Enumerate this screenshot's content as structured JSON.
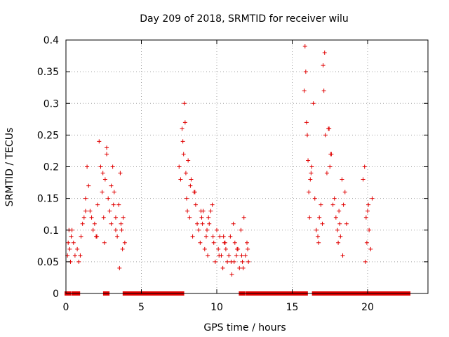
{
  "chart_data": {
    "type": "scatter",
    "title": "Day 209 of 2018, SRMTID for receiver wilu",
    "xlabel": "GPS time / hours",
    "ylabel": "SRMTID / TECUs",
    "xlim": [
      0,
      24
    ],
    "ylim": [
      0,
      0.4
    ],
    "xticks": [
      0,
      5,
      10,
      15,
      20
    ],
    "yticks": [
      0,
      0.05,
      0.1,
      0.15,
      0.2,
      0.25,
      0.3,
      0.35,
      0.4
    ],
    "xtick_labels": [
      "0",
      "5",
      "10",
      "15",
      "20"
    ],
    "ytick_labels": [
      "0",
      "0.05",
      "0.1",
      "0.15",
      "0.2",
      "0.25",
      "0.3",
      "0.35",
      "0.4"
    ],
    "grid": true,
    "marker": "+",
    "colors": {
      "series": "#e00000",
      "grid": "#a0a0a0",
      "axis": "#000000"
    },
    "series": [
      {
        "name": "SRMTID",
        "x": [
          0.1,
          0.15,
          0.2,
          0.25,
          0.3,
          0.35,
          0.4,
          0.5,
          0.6,
          0.75,
          0.85,
          0.95,
          1.0,
          1.1,
          1.2,
          1.3,
          1.4,
          1.5,
          1.6,
          1.7,
          1.8,
          1.9,
          2.0,
          2.1,
          2.2,
          2.3,
          2.4,
          2.5,
          2.55,
          2.6,
          2.7,
          2.8,
          2.9,
          3.0,
          3.1,
          3.2,
          3.3,
          3.4,
          3.5,
          3.6,
          3.7,
          3.8,
          3.9,
          2.7,
          3.0,
          3.3,
          3.55,
          3.75,
          1.3,
          2.05,
          2.45,
          3.15,
          3.65,
          7.5,
          7.6,
          7.7,
          7.75,
          7.8,
          7.85,
          7.9,
          7.95,
          8.0,
          8.05,
          8.1,
          8.2,
          8.3,
          8.4,
          8.5,
          8.6,
          8.7,
          8.8,
          8.9,
          9.0,
          9.1,
          9.2,
          9.3,
          9.4,
          9.5,
          9.6,
          9.7,
          9.8,
          9.9,
          10.0,
          10.1,
          10.2,
          10.3,
          10.4,
          10.5,
          10.6,
          10.7,
          10.8,
          10.9,
          11.0,
          11.1,
          11.2,
          11.3,
          11.4,
          11.5,
          11.6,
          11.7,
          11.8,
          11.9,
          12.0,
          12.1,
          8.25,
          8.55,
          8.95,
          9.35,
          9.75,
          10.15,
          10.55,
          10.95,
          11.35,
          11.75,
          12.05,
          9.05,
          9.45,
          10.45,
          11.15,
          11.65,
          15.8,
          15.85,
          15.9,
          15.95,
          16.0,
          16.05,
          16.1,
          16.15,
          16.2,
          16.3,
          16.4,
          16.5,
          16.6,
          16.7,
          16.8,
          16.9,
          17.0,
          17.05,
          17.1,
          17.2,
          17.3,
          17.4,
          17.5,
          17.6,
          17.7,
          17.8,
          17.9,
          18.0,
          18.1,
          18.2,
          18.3,
          18.4,
          18.5,
          18.6,
          19.7,
          19.8,
          19.9,
          20.0,
          20.1,
          20.2,
          20.3,
          17.15,
          17.45,
          18.05,
          18.35,
          19.85,
          20.05,
          16.25,
          16.75,
          17.55,
          18.15,
          19.95
        ],
        "values": [
          0.06,
          0.08,
          0.1,
          0.07,
          0.05,
          0.09,
          0.1,
          0.08,
          0.06,
          0.07,
          0.05,
          0.06,
          0.09,
          0.11,
          0.12,
          0.15,
          0.2,
          0.17,
          0.13,
          0.12,
          0.1,
          0.11,
          0.09,
          0.14,
          0.24,
          0.2,
          0.16,
          0.12,
          0.08,
          0.18,
          0.22,
          0.15,
          0.13,
          0.11,
          0.2,
          0.16,
          0.12,
          0.09,
          0.14,
          0.19,
          0.1,
          0.12,
          0.08,
          0.23,
          0.17,
          0.1,
          0.04,
          0.07,
          0.13,
          0.09,
          0.19,
          0.14,
          0.11,
          0.2,
          0.18,
          0.26,
          0.24,
          0.22,
          0.3,
          0.27,
          0.19,
          0.15,
          0.13,
          0.21,
          0.12,
          0.18,
          0.09,
          0.16,
          0.14,
          0.11,
          0.1,
          0.08,
          0.12,
          0.13,
          0.07,
          0.09,
          0.06,
          0.11,
          0.13,
          0.14,
          0.08,
          0.05,
          0.1,
          0.07,
          0.09,
          0.06,
          0.04,
          0.08,
          0.07,
          0.05,
          0.06,
          0.09,
          0.03,
          0.11,
          0.08,
          0.06,
          0.07,
          0.04,
          0.1,
          0.05,
          0.12,
          0.06,
          0.08,
          0.05,
          0.17,
          0.16,
          0.13,
          0.1,
          0.09,
          0.06,
          0.08,
          0.05,
          0.07,
          0.04,
          0.07,
          0.11,
          0.12,
          0.09,
          0.05,
          0.06,
          0.32,
          0.39,
          0.35,
          0.27,
          0.25,
          0.21,
          0.16,
          0.12,
          0.18,
          0.2,
          0.3,
          0.15,
          0.1,
          0.09,
          0.12,
          0.14,
          0.11,
          0.36,
          0.32,
          0.25,
          0.19,
          0.26,
          0.2,
          0.22,
          0.14,
          0.15,
          0.12,
          0.1,
          0.13,
          0.09,
          0.18,
          0.14,
          0.16,
          0.11,
          0.18,
          0.2,
          0.12,
          0.13,
          0.1,
          0.07,
          0.15,
          0.38,
          0.26,
          0.08,
          0.06,
          0.05,
          0.14,
          0.19,
          0.08,
          0.22,
          0.11,
          0.08
        ],
        "zero_ranges": [
          [
            0.05,
            0.2
          ],
          [
            0.5,
            0.8
          ],
          [
            2.6,
            2.75
          ],
          [
            3.9,
            7.7
          ],
          [
            11.6,
            11.75
          ],
          [
            12.05,
            12.2
          ],
          [
            12.35,
            15.9
          ],
          [
            16.45,
            17.0
          ],
          [
            17.15,
            17.7
          ],
          [
            17.85,
            17.95
          ],
          [
            18.15,
            18.35
          ],
          [
            18.5,
            19.45
          ],
          [
            19.6,
            19.75
          ],
          [
            20.0,
            20.3
          ],
          [
            20.4,
            22.7
          ]
        ]
      }
    ]
  }
}
